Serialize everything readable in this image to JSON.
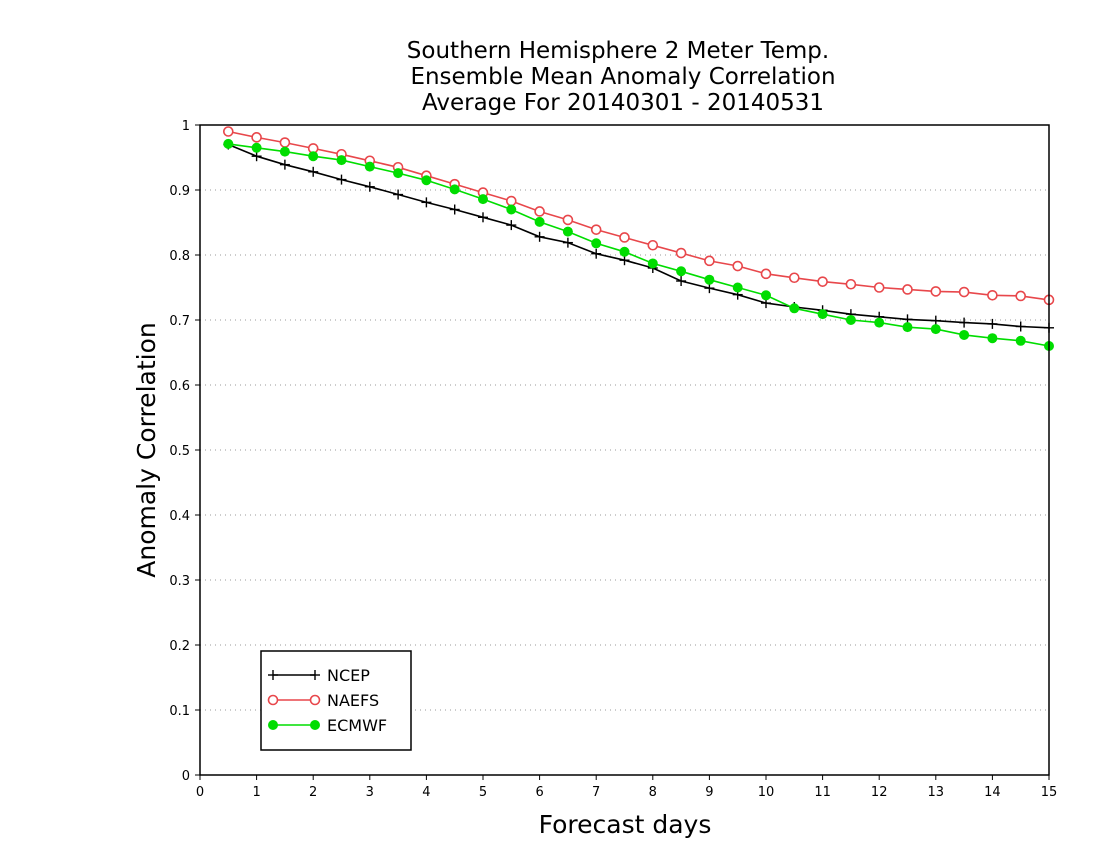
{
  "chart_data": {
    "type": "line",
    "title_lines": [
      "Southern Hemisphere 2 Meter Temp.",
      "Ensemble Mean Anomaly Correlation",
      "Average For 20140301 - 20140531"
    ],
    "xlabel": "Forecast days",
    "ylabel": "Anomaly Correlation",
    "xlim": [
      0,
      15
    ],
    "ylim": [
      0,
      1
    ],
    "xticks": [
      "0",
      "1",
      "2",
      "3",
      "4",
      "5",
      "6",
      "7",
      "8",
      "9",
      "10",
      "11",
      "12",
      "13",
      "14",
      "15"
    ],
    "yticks": [
      "0",
      "0.1",
      "0.2",
      "0.3",
      "0.4",
      "0.5",
      "0.6",
      "0.7",
      "0.8",
      "0.9",
      "1"
    ],
    "grid": "dotted-horizontal",
    "legend_position": "bottom-left",
    "x": [
      0.5,
      1,
      1.5,
      2,
      2.5,
      3,
      3.5,
      4,
      4.5,
      5,
      5.5,
      6,
      6.5,
      7,
      7.5,
      8,
      8.5,
      9,
      9.5,
      10,
      10.5,
      11,
      11.5,
      12,
      12.5,
      13,
      13.5,
      14,
      14.5,
      15
    ],
    "series": [
      {
        "name": "NCEP",
        "color": "#000000",
        "marker": "plus",
        "values": [
          0.97,
          0.952,
          0.939,
          0.928,
          0.916,
          0.905,
          0.893,
          0.881,
          0.87,
          0.858,
          0.846,
          0.828,
          0.819,
          0.802,
          0.792,
          0.78,
          0.76,
          0.749,
          0.739,
          0.726,
          0.72,
          0.715,
          0.709,
          0.705,
          0.701,
          0.699,
          0.696,
          0.694,
          0.69,
          0.688
        ]
      },
      {
        "name": "NAEFS",
        "color": "#e8474b",
        "marker": "open-circle",
        "values": [
          0.99,
          0.981,
          0.973,
          0.964,
          0.955,
          0.945,
          0.935,
          0.922,
          0.909,
          0.896,
          0.883,
          0.867,
          0.854,
          0.839,
          0.827,
          0.815,
          0.803,
          0.791,
          0.783,
          0.771,
          0.765,
          0.759,
          0.755,
          0.75,
          0.747,
          0.744,
          0.743,
          0.738,
          0.737,
          0.731
        ]
      },
      {
        "name": "ECMWF",
        "color": "#00dd00",
        "marker": "filled-circle",
        "values": [
          0.971,
          0.965,
          0.959,
          0.952,
          0.946,
          0.936,
          0.926,
          0.915,
          0.901,
          0.886,
          0.87,
          0.851,
          0.836,
          0.818,
          0.805,
          0.787,
          0.775,
          0.762,
          0.75,
          0.738,
          0.718,
          0.709,
          0.7,
          0.696,
          0.689,
          0.686,
          0.677,
          0.672,
          0.668,
          0.66
        ]
      }
    ]
  }
}
